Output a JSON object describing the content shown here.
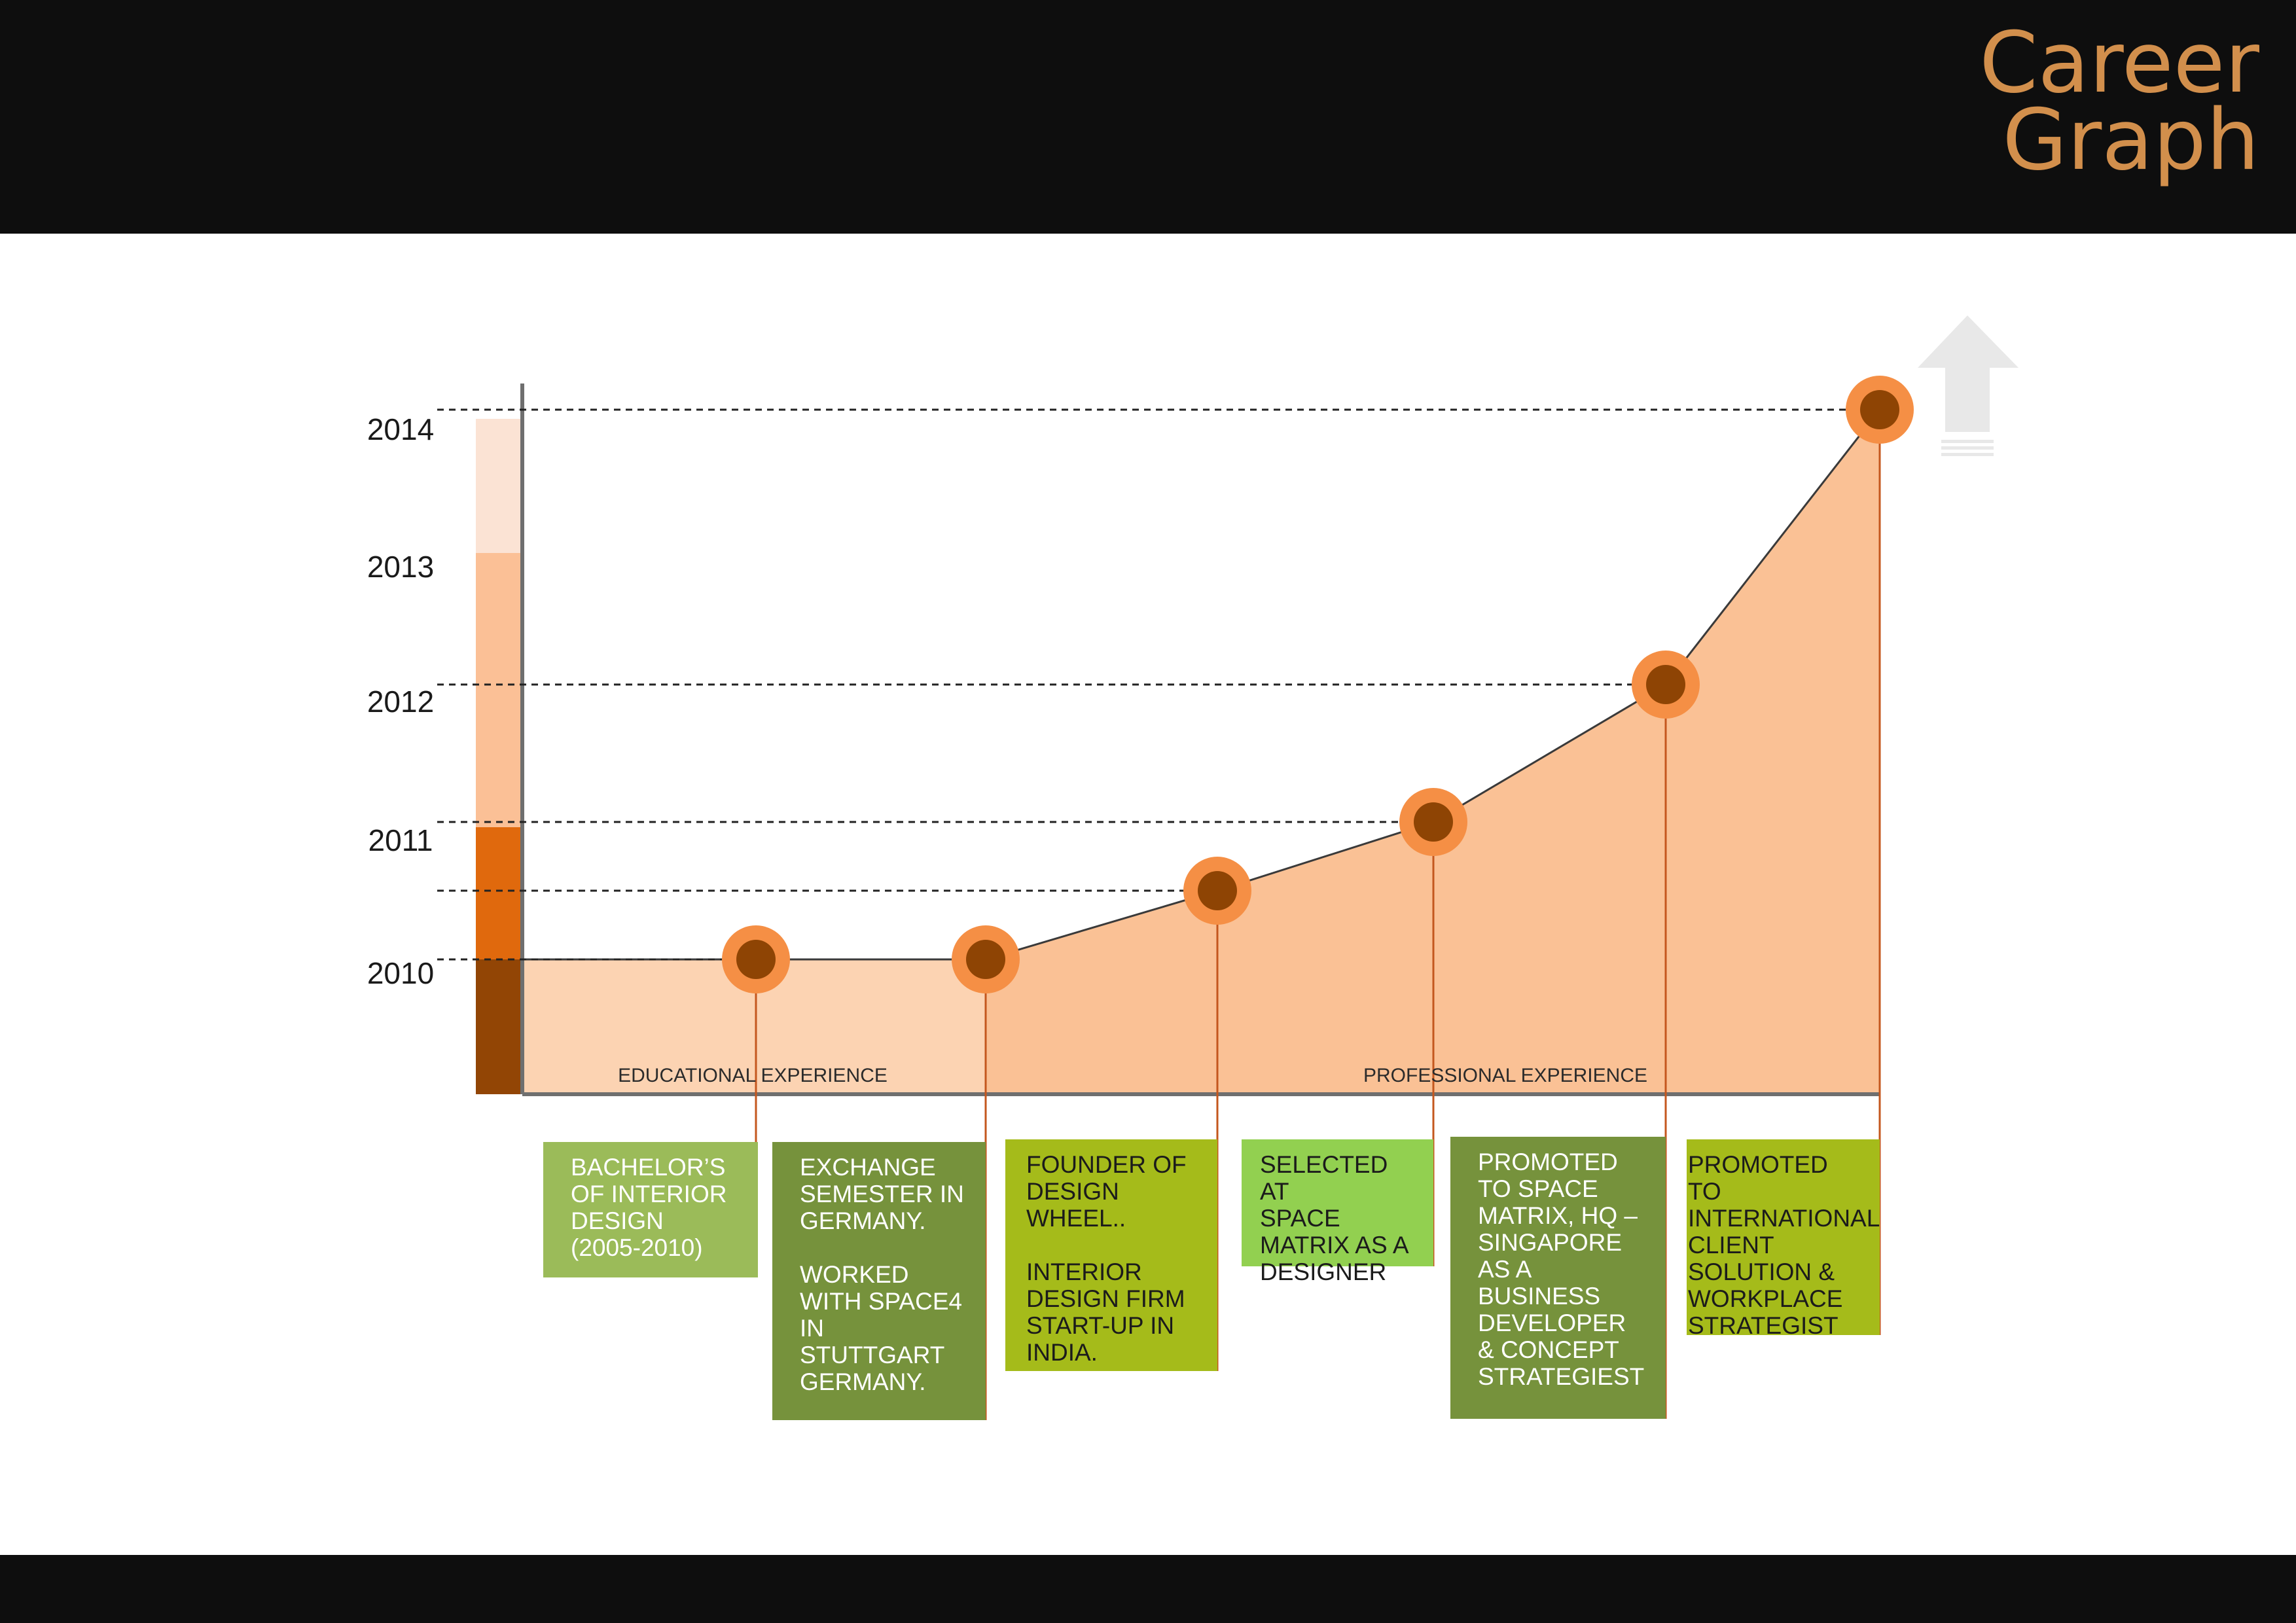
{
  "header": {
    "title_line1": "Career",
    "title_line2": "Graph"
  },
  "chart_data": {
    "type": "area",
    "title": "Career Graph",
    "y_ticks": [
      "2010",
      "2011",
      "2012",
      "2013",
      "2014"
    ],
    "ylim": [
      2009,
      2014.2
    ],
    "points": [
      {
        "label": "Bachelor's of Interior Design",
        "y": 2010.0
      },
      {
        "label": "Exchange semester / Space4",
        "y": 2010.0
      },
      {
        "label": "Founder of Design Wheel",
        "y": 2010.5
      },
      {
        "label": "Selected at Space Matrix",
        "y": 2011.0
      },
      {
        "label": "Promoted to Space Matrix HQ",
        "y": 2012.0
      },
      {
        "label": "Promoted to International Client Solution",
        "y": 2014.0
      }
    ],
    "sections": [
      "EDUCATIONAL EXPERIENCE",
      "PROFESSIONAL EXPERIENCE"
    ],
    "milestones": [
      {
        "text": "BACHELOR’S\nOF INTERIOR\nDESIGN\n(2005-2010)",
        "color": "#9bbb59"
      },
      {
        "text": "EXCHANGE\nSEMESTER IN\nGERMANY.\n\nWORKED\nWITH SPACE4\nIN\nSTUTTGART\nGERMANY.",
        "color": "#76923c"
      },
      {
        "text": "FOUNDER OF\nDESIGN WHEEL..\n\nINTERIOR\nDESIGN FIRM\nSTART-UP IN\nINDIA.",
        "color": "#a5bb1a"
      },
      {
        "text": "SELECTED AT\nSPACE\nMATRIX  AS A\nDESIGNER",
        "color": "#92d050"
      },
      {
        "text": "PROMOTED\nTO SPACE\nMATRIX,  HQ –\nSINGAPORE\nAS A\nBUSINESS\nDEVELOPER\n& CONCEPT\nSTRATEGIEST",
        "color": "#76923c"
      },
      {
        "text": "PROMOTED TO\nINTERNATIONAL\nCLIENT\nSOLUTION &\nWORKPLACE\nSTRATEGIST",
        "color": "#a5bb1a"
      }
    ],
    "colors": {
      "area_education": "#fcd3b2",
      "area_professional": "#fac195",
      "marker_ring": "#f58f45",
      "marker_core": "#8e4404",
      "year_bar": [
        "#924505",
        "#e0690d",
        "#fbc096",
        "#fbe3d4"
      ],
      "arrow": "#e8e8e8"
    }
  }
}
